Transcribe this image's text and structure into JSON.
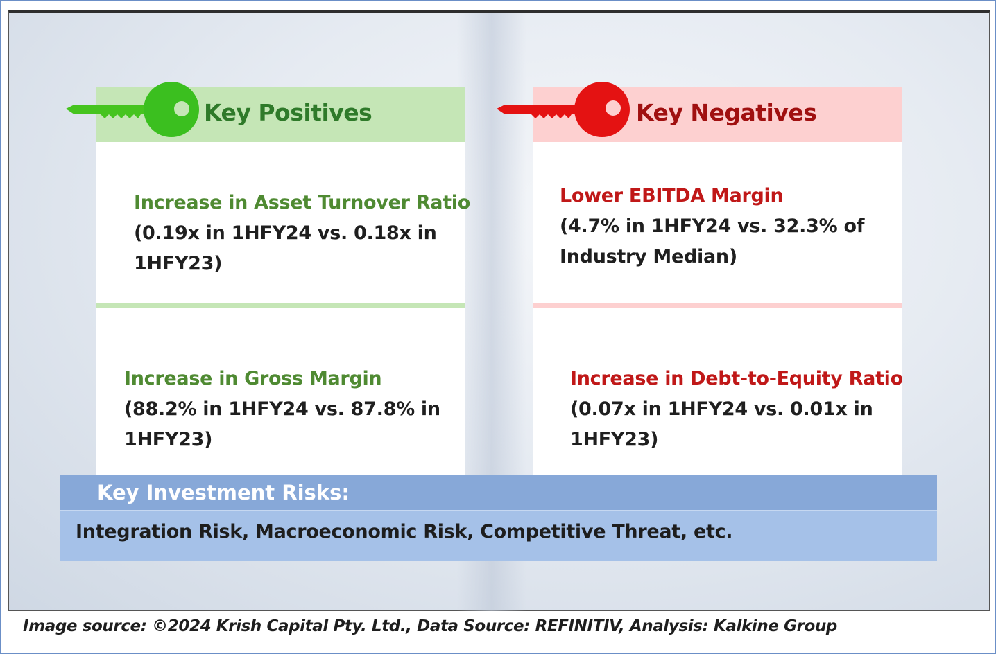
{
  "positives": {
    "header": "Key Positives",
    "icon": "green-key-icon",
    "color": "#3bbf1f",
    "items": [
      {
        "title": "Increase in Asset Turnover Ratio",
        "desc_line1": "(0.19x in 1HFY24 vs. 0.18x in",
        "desc_line2": "1HFY23)"
      },
      {
        "title": "Increase in Gross Margin",
        "desc_line1": "(88.2% in 1HFY24 vs. 87.8% in",
        "desc_line2": "1HFY23)"
      }
    ]
  },
  "negatives": {
    "header": "Key Negatives",
    "icon": "red-key-icon",
    "color": "#e41212",
    "items": [
      {
        "title": "Lower EBITDA Margin",
        "desc_line1": "(4.7% in 1HFY24 vs. 32.3% of",
        "desc_line2": "Industry Median)"
      },
      {
        "title": "Increase in Debt-to-Equity Ratio",
        "desc_line1": "(0.07x in 1HFY24 vs. 0.01x in",
        "desc_line2": "1HFY23)"
      }
    ]
  },
  "risks": {
    "title": "Key Investment Risks:",
    "text": "Integration Risk, Macroeconomic Risk, Competitive Threat, etc."
  },
  "footer": {
    "source": "Image source: ©2024 Krish Capital Pty. Ltd., Data Source: REFINITIV, Analysis: Kalkine Group"
  }
}
